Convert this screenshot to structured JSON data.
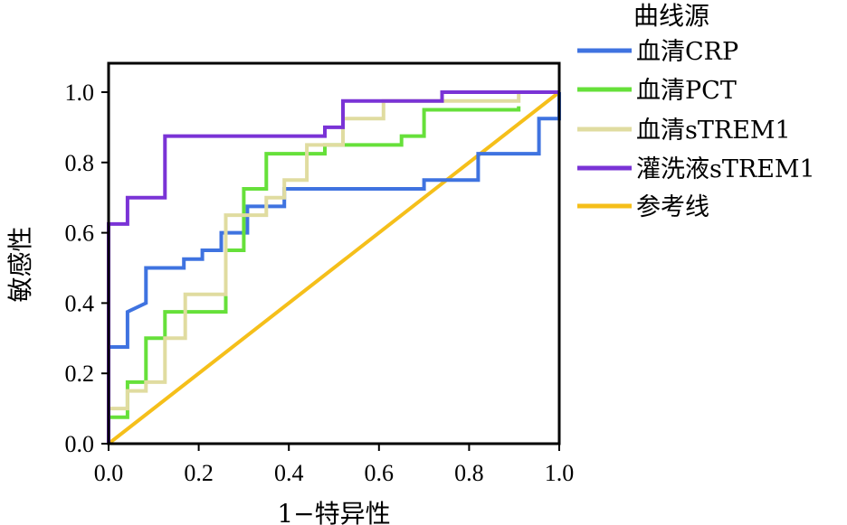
{
  "chart_data": {
    "type": "line",
    "xlabel": "1−特异性",
    "ylabel": "敏感性",
    "xlim": [
      0,
      1
    ],
    "ylim": [
      0,
      1.1
    ],
    "x_ticks": [
      "0.0",
      "0.2",
      "0.4",
      "0.6",
      "0.8",
      "1.0"
    ],
    "y_ticks": [
      "0.0",
      "0.2",
      "0.4",
      "0.6",
      "0.8",
      "1.0"
    ],
    "grid": false,
    "legend_title": "曲线源",
    "legend_position": "right",
    "series": [
      {
        "name": "血清CRP",
        "color": "#3f73e0",
        "x": [
          0,
          0,
          0.042,
          0.042,
          0.083,
          0.083,
          0.167,
          0.167,
          0.208,
          0.208,
          0.25,
          0.25,
          0.308,
          0.308,
          0.39,
          0.39,
          0.7,
          0.7,
          0.82,
          0.82,
          0.955,
          0.955,
          1.0,
          1.0
        ],
        "y": [
          0,
          0.275,
          0.275,
          0.375,
          0.4,
          0.5,
          0.5,
          0.525,
          0.525,
          0.55,
          0.55,
          0.6,
          0.6,
          0.675,
          0.675,
          0.725,
          0.725,
          0.75,
          0.75,
          0.825,
          0.825,
          0.925,
          0.925,
          1.0
        ]
      },
      {
        "name": "血清PCT",
        "color": "#66e03a",
        "x": [
          0,
          0,
          0.042,
          0.042,
          0.083,
          0.083,
          0.125,
          0.125,
          0.26,
          0.26,
          0.3,
          0.3,
          0.35,
          0.35,
          0.48,
          0.48,
          0.65,
          0.65,
          0.7,
          0.7,
          0.91,
          0.91
        ],
        "y": [
          0,
          0.075,
          0.075,
          0.175,
          0.175,
          0.3,
          0.3,
          0.375,
          0.375,
          0.55,
          0.55,
          0.725,
          0.725,
          0.825,
          0.825,
          0.85,
          0.85,
          0.875,
          0.875,
          0.95,
          0.95,
          0.96
        ]
      },
      {
        "name": "血清sTREM1",
        "color": "#e0dca0",
        "x": [
          0,
          0,
          0.042,
          0.042,
          0.083,
          0.083,
          0.125,
          0.125,
          0.17,
          0.17,
          0.26,
          0.26,
          0.35,
          0.35,
          0.39,
          0.39,
          0.44,
          0.44,
          0.52,
          0.52,
          0.61,
          0.61,
          0.91,
          0.91
        ],
        "y": [
          0,
          0.1,
          0.1,
          0.15,
          0.15,
          0.175,
          0.175,
          0.3,
          0.3,
          0.425,
          0.425,
          0.65,
          0.65,
          0.7,
          0.7,
          0.75,
          0.75,
          0.85,
          0.85,
          0.925,
          0.925,
          0.975,
          0.975,
          1.0
        ]
      },
      {
        "name": "灌洗液sTREM1",
        "color": "#7a33d6",
        "x": [
          0,
          0,
          0.042,
          0.042,
          0.125,
          0.125,
          0.44,
          0.44,
          0.48,
          0.48,
          0.52,
          0.52,
          0.74,
          0.74,
          1.0
        ],
        "y": [
          0,
          0.625,
          0.625,
          0.7,
          0.7,
          0.875,
          0.875,
          0.875,
          0.875,
          0.9,
          0.9,
          0.975,
          0.975,
          1.0,
          1.0
        ]
      },
      {
        "name": "参考线",
        "color": "#f5bf1a",
        "x": [
          0,
          1
        ],
        "y": [
          0,
          1
        ]
      }
    ]
  }
}
